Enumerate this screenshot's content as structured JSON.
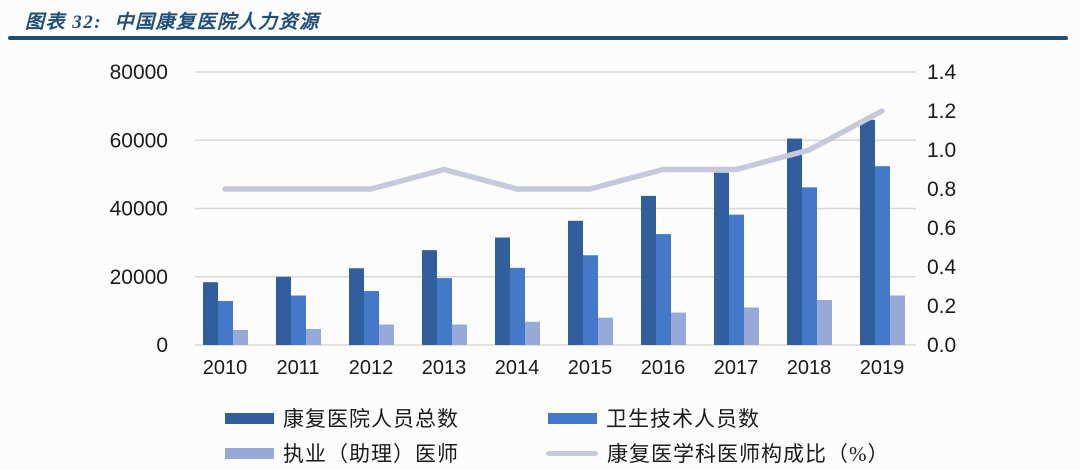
{
  "header": {
    "title": "图表 32:  中国康复医院人力资源"
  },
  "colors": {
    "title_text": "#1f4e79",
    "title_rule": "#1f4e79",
    "axis_text": "#1a1a1a",
    "gridline": "#d8d8d8",
    "background": "#fcfcfc",
    "bar_dark": "#315f9e",
    "bar_medium": "#4478c8",
    "bar_light": "#96a9d8",
    "trend_line": "#c4cadc"
  },
  "chart_data": {
    "type": "bar",
    "subtype": "grouped-bars-with-right-axis-line",
    "title": "中国康复医院人力资源",
    "categories": [
      "2010",
      "2011",
      "2012",
      "2013",
      "2014",
      "2015",
      "2016",
      "2017",
      "2018",
      "2019"
    ],
    "series": [
      {
        "name": "康复医院人员总数",
        "type": "bar",
        "axis": "left",
        "color": "#315f9e",
        "values": [
          18400,
          20000,
          22500,
          27800,
          31500,
          36400,
          43700,
          50500,
          60500,
          66000
        ]
      },
      {
        "name": "卫生技术人员数",
        "type": "bar",
        "axis": "left",
        "color": "#4478c8",
        "values": [
          12900,
          14500,
          15800,
          19600,
          22600,
          26300,
          32500,
          38200,
          46200,
          52400
        ]
      },
      {
        "name": "执业（助理）医师",
        "type": "bar",
        "axis": "left",
        "color": "#96a9d8",
        "values": [
          4400,
          4700,
          6000,
          6000,
          6800,
          8000,
          9500,
          11000,
          13200,
          14500
        ]
      },
      {
        "name": "康复医学科医师构成比（%）",
        "type": "line",
        "axis": "right",
        "color": "#c4cadc",
        "values": [
          0.8,
          0.8,
          0.8,
          0.9,
          0.8,
          0.8,
          0.9,
          0.9,
          1.0,
          1.2
        ]
      }
    ],
    "left_axis": {
      "min": 0,
      "max": 80000,
      "ticks": [
        0,
        20000,
        40000,
        60000,
        80000
      ]
    },
    "right_axis": {
      "min": 0.0,
      "max": 1.4,
      "ticks": [
        "0.0",
        "0.2",
        "0.4",
        "0.6",
        "0.8",
        "1.0",
        "1.2",
        "1.4"
      ]
    },
    "grid": "horizontal",
    "legend_position": "bottom"
  }
}
